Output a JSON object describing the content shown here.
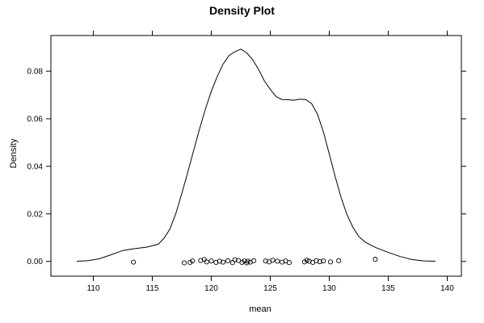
{
  "chart_data": {
    "type": "line",
    "title": "Density Plot",
    "xlabel": "mean",
    "ylabel": "Density",
    "xlim": [
      106.4,
      141.2
    ],
    "ylim": [
      -0.0062,
      0.095
    ],
    "x_ticks": [
      110,
      115,
      120,
      125,
      130,
      135,
      140
    ],
    "y_ticks": [
      0.0,
      0.02,
      0.04,
      0.06,
      0.08
    ],
    "x_tick_labels": [
      "110",
      "115",
      "120",
      "125",
      "130",
      "135",
      "140"
    ],
    "y_tick_labels": [
      "0.00",
      "0.02",
      "0.04",
      "0.06",
      "0.08"
    ],
    "grid": false,
    "series": [
      {
        "x": [
          108.6,
          109.5,
          110.5,
          111.5,
          112.5,
          113.5,
          114.5,
          115.5,
          116.0,
          116.5,
          117.0,
          117.5,
          118.0,
          118.5,
          119.0,
          119.5,
          120.0,
          120.5,
          121.0,
          121.5,
          122.0,
          122.5,
          123.0,
          123.5,
          124.0,
          124.5,
          125.0,
          125.5,
          126.0,
          126.5,
          127.0,
          127.5,
          128.0,
          128.5,
          129.0,
          129.5,
          130.0,
          130.5,
          131.0,
          131.5,
          132.0,
          132.5,
          133.0,
          133.5,
          134.0,
          135.0,
          136.0,
          137.0,
          138.0,
          139.0
        ],
        "y": [
          0.0001,
          0.0003,
          0.0011,
          0.0028,
          0.0046,
          0.0054,
          0.006,
          0.0072,
          0.0098,
          0.0137,
          0.0203,
          0.0286,
          0.0374,
          0.0466,
          0.0557,
          0.0641,
          0.0716,
          0.0778,
          0.083,
          0.0866,
          0.0882,
          0.0893,
          0.0877,
          0.0849,
          0.0808,
          0.0759,
          0.0723,
          0.0693,
          0.0681,
          0.068,
          0.0678,
          0.0682,
          0.0681,
          0.0664,
          0.0619,
          0.0545,
          0.0452,
          0.0357,
          0.0269,
          0.0197,
          0.0144,
          0.0105,
          0.0083,
          0.0069,
          0.0057,
          0.0038,
          0.0021,
          0.0008,
          0.0002,
          0.0001
        ]
      }
    ],
    "rug_points": [
      {
        "x": 113.4,
        "y": -0.0003
      },
      {
        "x": 117.7,
        "y": -0.0006
      },
      {
        "x": 118.2,
        "y": -0.0004
      },
      {
        "x": 118.4,
        "y": 0.0002
      },
      {
        "x": 119.1,
        "y": 0.0004
      },
      {
        "x": 119.4,
        "y": 0.0008
      },
      {
        "x": 119.6,
        "y": -0.0002
      },
      {
        "x": 120.0,
        "y": 0.0002
      },
      {
        "x": 120.4,
        "y": -0.0004
      },
      {
        "x": 120.7,
        "y": 0.0001
      },
      {
        "x": 121.0,
        "y": -0.0003
      },
      {
        "x": 121.4,
        "y": 0.0003
      },
      {
        "x": 121.8,
        "y": -0.0005
      },
      {
        "x": 122.0,
        "y": 0.0007
      },
      {
        "x": 122.3,
        "y": 0.0004
      },
      {
        "x": 122.6,
        "y": -0.0004
      },
      {
        "x": 122.8,
        "y": 0.0002
      },
      {
        "x": 123.0,
        "y": -0.0006
      },
      {
        "x": 123.1,
        "y": 0.0001
      },
      {
        "x": 123.3,
        "y": -0.0003
      },
      {
        "x": 123.6,
        "y": 0.0003
      },
      {
        "x": 124.6,
        "y": 0.0002
      },
      {
        "x": 124.9,
        "y": -0.0002
      },
      {
        "x": 125.2,
        "y": 0.0005
      },
      {
        "x": 125.6,
        "y": 0.0001
      },
      {
        "x": 126.0,
        "y": -0.0003
      },
      {
        "x": 126.3,
        "y": 0.0002
      },
      {
        "x": 126.6,
        "y": -0.0005
      },
      {
        "x": 127.9,
        "y": -0.0002
      },
      {
        "x": 128.1,
        "y": 0.0005
      },
      {
        "x": 128.3,
        "y": 0.0001
      },
      {
        "x": 128.6,
        "y": -0.0004
      },
      {
        "x": 128.9,
        "y": 0.0003
      },
      {
        "x": 129.2,
        "y": -0.0001
      },
      {
        "x": 129.5,
        "y": 0.0002
      },
      {
        "x": 130.1,
        "y": -0.0002
      },
      {
        "x": 130.8,
        "y": 0.0003
      },
      {
        "x": 133.9,
        "y": 0.0009
      }
    ],
    "colors": {
      "line": "#000000",
      "points": "#000000",
      "background": "#ffffff"
    }
  }
}
